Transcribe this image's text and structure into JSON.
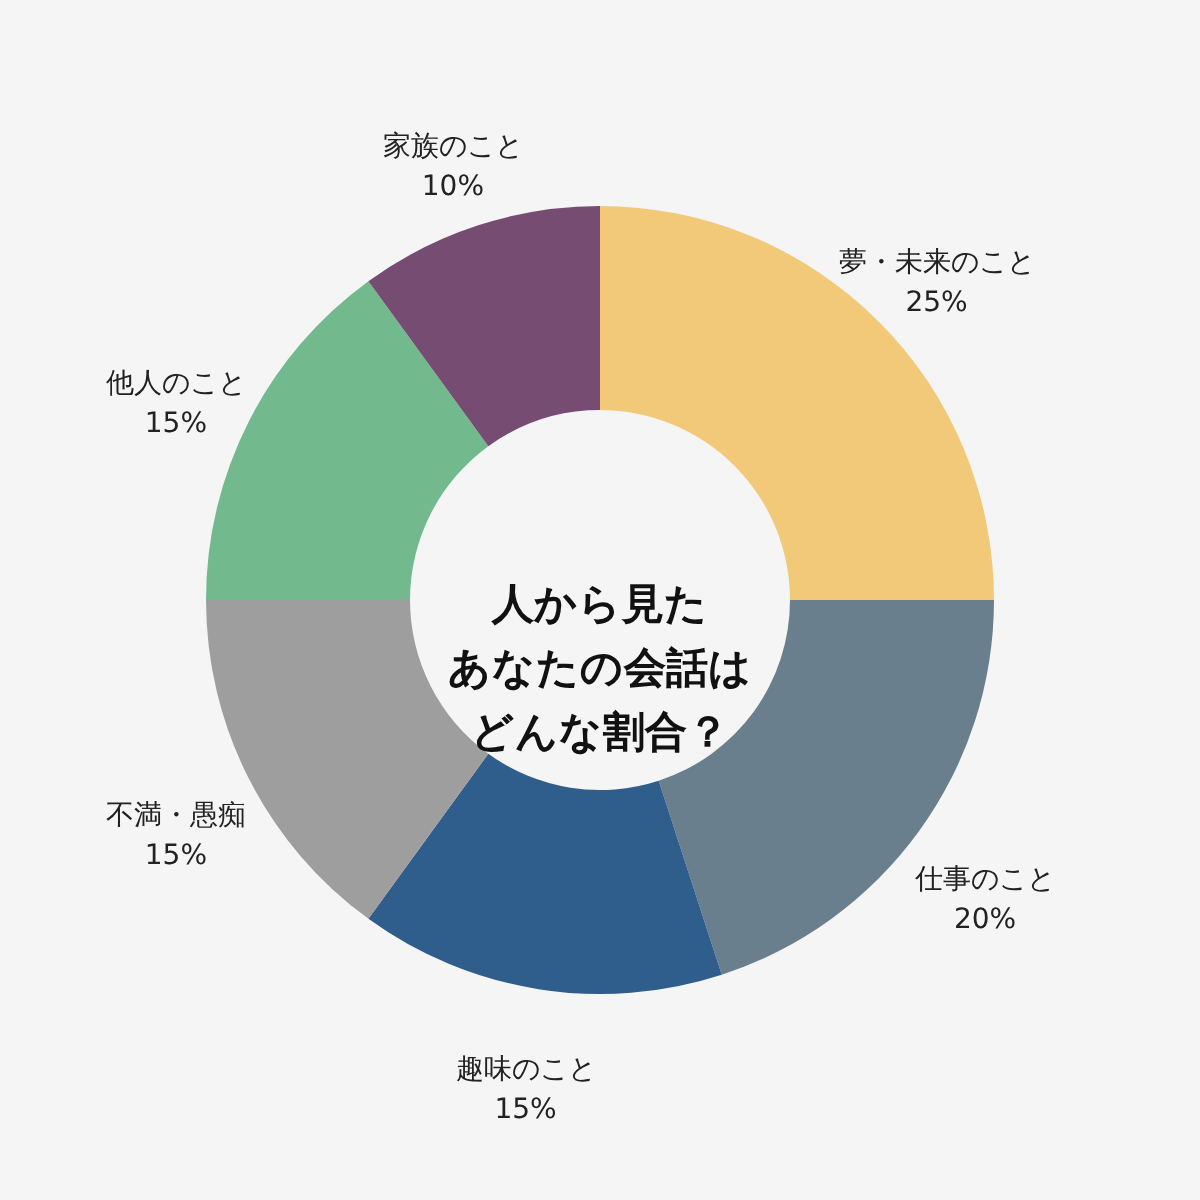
{
  "chart_data": {
    "type": "donut",
    "title": "人から見たあなたの会話はどんな割合？",
    "categories": [
      "夢・未来のこと",
      "仕事のこと",
      "趣味のこと",
      "不満・愚痴",
      "他人のこと",
      "家族のこと"
    ],
    "values": [
      25,
      20,
      15,
      15,
      15,
      10
    ],
    "colors": [
      "#f2c879",
      "#6a7f8e",
      "#2f5d8c",
      "#9e9e9e",
      "#72b98e",
      "#774c72"
    ],
    "value_labels": [
      "25%",
      "20%",
      "15%",
      "15%",
      "15%",
      "10%"
    ],
    "legend": false
  }
}
